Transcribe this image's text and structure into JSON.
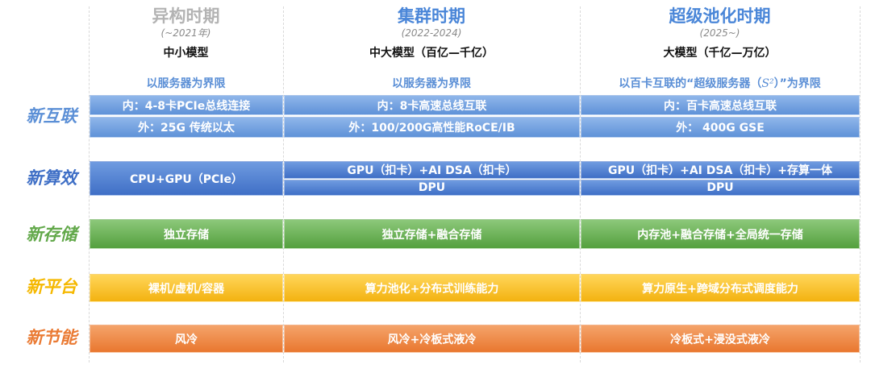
{
  "eras": [
    {
      "title": "异构时期",
      "years": "(~2021年)",
      "model": "中小模型",
      "boundary": "以服务器为界限",
      "title_color": "#b3b3b3"
    },
    {
      "title": "集群时期",
      "years": "(2022-2024)",
      "model": "中大模型（百亿—千亿）",
      "boundary": "以服务器为界限",
      "title_color": "#4a86d8"
    },
    {
      "title": "超级池化时期",
      "years": "(2025~)",
      "model": "大模型（千亿—万亿）",
      "boundary_pre": "以百卡互联的“超级服务器（",
      "boundary_sup": "S²",
      "boundary_post": "）”为界限",
      "title_color": "#4a86d8"
    }
  ],
  "rows": {
    "interconnect": {
      "label": "新互联",
      "color": "#5b8fd6",
      "cells": [
        [
          "内：4-8卡PCIe总线连接",
          "外：25G 传统以太"
        ],
        [
          "内：8卡高速总线互联",
          "外：100/200G高性能RoCE/IB"
        ],
        [
          "内：百卡高速总线互联",
          "外：  400G GSE"
        ]
      ]
    },
    "compute": {
      "label": "新算效",
      "color": "#3f6fc6",
      "cells": [
        [
          "CPU+GPU（PCIe）"
        ],
        [
          "GPU（扣卡）+AI DSA（扣卡）",
          "DPU"
        ],
        [
          "GPU（扣卡）+AI DSA（扣卡）+存算一体",
          "DPU"
        ]
      ]
    },
    "storage": {
      "label": "新存储",
      "color": "#62a84a",
      "cells": [
        [
          "独立存储"
        ],
        [
          "独立存储+融合存储"
        ],
        [
          "内存池+融合存储+全局统一存储"
        ]
      ]
    },
    "platform": {
      "label": "新平台",
      "color": "#f5b800",
      "cells": [
        [
          "裸机/虚机/容器"
        ],
        [
          "算力池化+分布式训练能力"
        ],
        [
          "算力原生+跨域分布式调度能力"
        ]
      ]
    },
    "energy": {
      "label": "新节能",
      "color": "#ea7a33",
      "cells": [
        [
          "风冷"
        ],
        [
          "风冷+冷板式液冷"
        ],
        [
          "冷板式+浸没式液冷"
        ]
      ]
    }
  }
}
